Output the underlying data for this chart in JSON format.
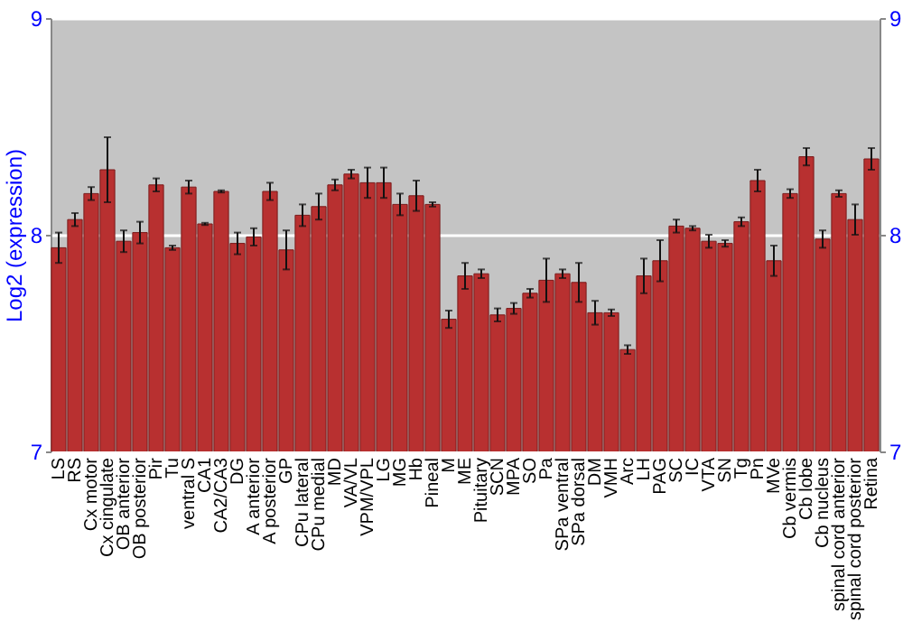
{
  "chart_data": {
    "type": "bar",
    "ylabel": "Log2 (expression)",
    "categories": [
      "LS",
      "RS",
      "Cx motor",
      "Cx cingulate",
      "OB anterior",
      "OB posterior",
      "Pir",
      "Tu",
      "ventral S",
      "CA1",
      "CA2/CA3",
      "DG",
      "A anterior",
      "A posterior",
      "GP",
      "CPu lateral",
      "CPu medial",
      "MD",
      "VA/VL",
      "VPM/VPL",
      "LG",
      "MG",
      "Hb",
      "Pineal",
      "M",
      "ME",
      "Pituitary",
      "SCN",
      "MPA",
      "SO",
      "Pa",
      "SPa ventral",
      "SPa dorsal",
      "DM",
      "VMH",
      "Arc",
      "LH",
      "PAG",
      "SC",
      "IC",
      "VTA",
      "SN",
      "Tg",
      "Pn",
      "MVe",
      "Cb vermis",
      "Cb lobe",
      "Cb nucleus",
      "spinal cord anterior",
      "spinal cord posterior",
      "Retina"
    ],
    "values": [
      7.94,
      8.07,
      8.19,
      8.3,
      7.97,
      8.01,
      8.23,
      7.94,
      8.22,
      8.05,
      8.2,
      7.96,
      7.99,
      8.2,
      7.93,
      8.09,
      8.13,
      8.23,
      8.28,
      8.24,
      8.24,
      8.14,
      8.18,
      8.14,
      7.61,
      7.81,
      7.82,
      7.63,
      7.66,
      7.73,
      7.79,
      7.82,
      7.78,
      7.64,
      7.64,
      7.47,
      7.81,
      7.88,
      8.04,
      8.03,
      7.97,
      7.96,
      8.06,
      8.25,
      7.88,
      8.19,
      8.36,
      7.98,
      8.19,
      8.07,
      8.35
    ],
    "errors": [
      0.07,
      0.03,
      0.03,
      0.15,
      0.05,
      0.05,
      0.03,
      0.01,
      0.03,
      0.005,
      0.005,
      0.05,
      0.04,
      0.04,
      0.09,
      0.05,
      0.06,
      0.025,
      0.02,
      0.07,
      0.07,
      0.05,
      0.07,
      0.01,
      0.04,
      0.06,
      0.02,
      0.03,
      0.025,
      0.02,
      0.1,
      0.02,
      0.09,
      0.055,
      0.015,
      0.02,
      0.08,
      0.095,
      0.03,
      0.01,
      0.03,
      0.015,
      0.02,
      0.05,
      0.07,
      0.02,
      0.04,
      0.04,
      0.015,
      0.07,
      0.05
    ],
    "color": "#b83030",
    "ylim": [
      7,
      9
    ],
    "yticks": [
      7,
      8,
      9
    ],
    "y2lim": [
      7,
      9
    ],
    "y2ticks": [
      7,
      8,
      9
    ],
    "grid": "y"
  }
}
